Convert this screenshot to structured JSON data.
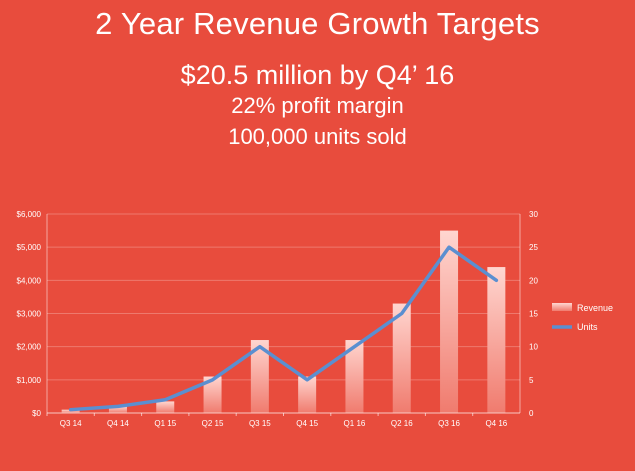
{
  "slide": {
    "title": "2 Year Revenue Growth Targets",
    "subtitle_line1": "$20.5 million by Q4’ 16",
    "subtitle_line2": "22% profit margin",
    "subtitle_line3": "100,000 units sold"
  },
  "colors": {
    "background": "#e84c3d",
    "bar_top": "#ffd6d0",
    "bar_bottom": "#f07b6e",
    "line": "#5b8fd0",
    "text": "#ffffff"
  },
  "chart_data": {
    "type": "bar",
    "categories": [
      "Q3 14",
      "Q4 14",
      "Q1 15",
      "Q2 15",
      "Q3 15",
      "Q4 15",
      "Q1 16",
      "Q2 16",
      "Q3 16",
      "Q4 16"
    ],
    "series": [
      {
        "name": "Revenue",
        "type": "bar",
        "axis": "left",
        "values": [
          100,
          200,
          350,
          1100,
          2200,
          1100,
          2200,
          3300,
          5500,
          4400
        ]
      },
      {
        "name": "Units",
        "type": "line",
        "axis": "right",
        "values": [
          0.5,
          1,
          2,
          5,
          10,
          5,
          10,
          15,
          25,
          20
        ]
      }
    ],
    "left_axis": {
      "min": 0,
      "max": 6000,
      "ticks": [
        "$0",
        "$1,000",
        "$2,000",
        "$3,000",
        "$4,000",
        "$5,000",
        "$6,000"
      ]
    },
    "right_axis": {
      "min": 0,
      "max": 30,
      "ticks": [
        "0",
        "5",
        "10",
        "15",
        "20",
        "25",
        "30"
      ]
    },
    "legend_position": "right"
  }
}
